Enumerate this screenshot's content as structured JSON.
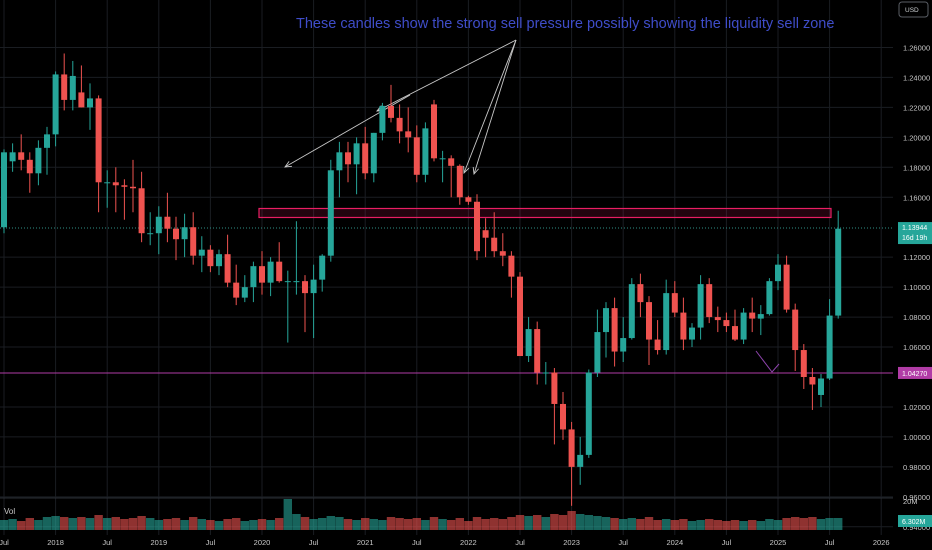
{
  "chart_data": {
    "type": "candlestick",
    "annotation": "These candles show the strong sell pressure possibly showing the liquidity sell zone",
    "currency_button": "USD",
    "yaxis": {
      "ticks": [
        1.26,
        1.24,
        1.22,
        1.2,
        1.18,
        1.16,
        1.12,
        1.1,
        1.08,
        1.06,
        1.02,
        1.0,
        0.98,
        0.96,
        0.94
      ],
      "tick_labels": [
        "1.26000",
        "1.24000",
        "1.22000",
        "1.20000",
        "1.18000",
        "1.16000",
        "1.12000",
        "1.10000",
        "1.08000",
        "1.06000",
        "1.02000",
        "1.00000",
        "0.98000",
        "0.96000",
        "0.94000"
      ],
      "range": [
        0.9245,
        1.2917
      ]
    },
    "price_tag": {
      "value": 1.13944,
      "label": "1.13944",
      "sublabel": "16d 19h"
    },
    "line_tag": {
      "value": 1.0427,
      "label": "1.04270"
    },
    "sell_zone": {
      "top": 1.1525,
      "bottom": 1.1465
    },
    "volume": {
      "label": "Vol",
      "scale_label": "20M",
      "value_label": "6.302M"
    },
    "xaxis": {
      "ticks": [
        {
          "i": 0,
          "label": "Jul"
        },
        {
          "i": 6,
          "label": "2018"
        },
        {
          "i": 12,
          "label": "Jul"
        },
        {
          "i": 18,
          "label": "2019"
        },
        {
          "i": 24,
          "label": "Jul"
        },
        {
          "i": 30,
          "label": "2020"
        },
        {
          "i": 36,
          "label": "Jul"
        },
        {
          "i": 42,
          "label": "2021"
        },
        {
          "i": 48,
          "label": "Jul"
        },
        {
          "i": 54,
          "label": "2022"
        },
        {
          "i": 60,
          "label": "Jul"
        },
        {
          "i": 66,
          "label": "2023"
        },
        {
          "i": 72,
          "label": "Jul"
        },
        {
          "i": 78,
          "label": "2024"
        },
        {
          "i": 84,
          "label": "Jul"
        },
        {
          "i": 90,
          "label": "2025"
        },
        {
          "i": 96,
          "label": "Jul"
        },
        {
          "i": 102,
          "label": "2026"
        }
      ]
    },
    "candles": [
      {
        "o": 1.14,
        "h": 1.192,
        "l": 1.136,
        "c": 1.19,
        "v": 1.0
      },
      {
        "o": 1.184,
        "h": 1.196,
        "l": 1.177,
        "c": 1.19,
        "v": 1.1
      },
      {
        "o": 1.19,
        "h": 1.202,
        "l": 1.178,
        "c": 1.185,
        "v": 0.9
      },
      {
        "o": 1.185,
        "h": 1.19,
        "l": 1.163,
        "c": 1.176,
        "v": 1.2
      },
      {
        "o": 1.176,
        "h": 1.198,
        "l": 1.168,
        "c": 1.193,
        "v": 1.0
      },
      {
        "o": 1.193,
        "h": 1.207,
        "l": 1.175,
        "c": 1.202,
        "v": 1.3
      },
      {
        "o": 1.202,
        "h": 1.244,
        "l": 1.194,
        "c": 1.242,
        "v": 1.4
      },
      {
        "o": 1.242,
        "h": 1.256,
        "l": 1.218,
        "c": 1.225,
        "v": 1.3
      },
      {
        "o": 1.225,
        "h": 1.251,
        "l": 1.218,
        "c": 1.241,
        "v": 1.2
      },
      {
        "o": 1.23,
        "h": 1.248,
        "l": 1.22,
        "c": 1.22,
        "v": 1.3
      },
      {
        "o": 1.22,
        "h": 1.236,
        "l": 1.205,
        "c": 1.226,
        "v": 1.2
      },
      {
        "o": 1.226,
        "h": 1.228,
        "l": 1.15,
        "c": 1.17,
        "v": 1.5
      },
      {
        "o": 1.17,
        "h": 1.178,
        "l": 1.153,
        "c": 1.17,
        "v": 1.2
      },
      {
        "o": 1.17,
        "h": 1.18,
        "l": 1.15,
        "c": 1.168,
        "v": 1.3
      },
      {
        "o": 1.168,
        "h": 1.172,
        "l": 1.145,
        "c": 1.167,
        "v": 1.1
      },
      {
        "o": 1.167,
        "h": 1.185,
        "l": 1.15,
        "c": 1.166,
        "v": 1.2
      },
      {
        "o": 1.166,
        "h": 1.177,
        "l": 1.13,
        "c": 1.136,
        "v": 1.4
      },
      {
        "o": 1.136,
        "h": 1.15,
        "l": 1.128,
        "c": 1.136,
        "v": 1.2
      },
      {
        "o": 1.136,
        "h": 1.154,
        "l": 1.122,
        "c": 1.147,
        "v": 1.0
      },
      {
        "o": 1.147,
        "h": 1.163,
        "l": 1.13,
        "c": 1.139,
        "v": 1.1
      },
      {
        "o": 1.139,
        "h": 1.147,
        "l": 1.118,
        "c": 1.132,
        "v": 1.2
      },
      {
        "o": 1.132,
        "h": 1.149,
        "l": 1.12,
        "c": 1.14,
        "v": 1.0
      },
      {
        "o": 1.14,
        "h": 1.15,
        "l": 1.115,
        "c": 1.121,
        "v": 1.3
      },
      {
        "o": 1.121,
        "h": 1.134,
        "l": 1.11,
        "c": 1.125,
        "v": 1.1
      },
      {
        "o": 1.125,
        "h": 1.128,
        "l": 1.11,
        "c": 1.114,
        "v": 1.0
      },
      {
        "o": 1.114,
        "h": 1.125,
        "l": 1.108,
        "c": 1.122,
        "v": 0.9
      },
      {
        "o": 1.122,
        "h": 1.135,
        "l": 1.1,
        "c": 1.103,
        "v": 1.1
      },
      {
        "o": 1.103,
        "h": 1.115,
        "l": 1.088,
        "c": 1.093,
        "v": 1.2
      },
      {
        "o": 1.093,
        "h": 1.108,
        "l": 1.09,
        "c": 1.1,
        "v": 0.9
      },
      {
        "o": 1.1,
        "h": 1.117,
        "l": 1.09,
        "c": 1.114,
        "v": 1.0
      },
      {
        "o": 1.114,
        "h": 1.124,
        "l": 1.095,
        "c": 1.103,
        "v": 1.1
      },
      {
        "o": 1.103,
        "h": 1.12,
        "l": 1.094,
        "c": 1.117,
        "v": 1.0
      },
      {
        "o": 1.117,
        "h": 1.13,
        "l": 1.103,
        "c": 1.104,
        "v": 1.2
      },
      {
        "o": 1.104,
        "h": 1.111,
        "l": 1.063,
        "c": 1.104,
        "v": 3.1
      },
      {
        "o": 1.104,
        "h": 1.144,
        "l": 1.095,
        "c": 1.104,
        "v": 1.6
      },
      {
        "o": 1.104,
        "h": 1.108,
        "l": 1.07,
        "c": 1.096,
        "v": 1.3
      },
      {
        "o": 1.096,
        "h": 1.115,
        "l": 1.066,
        "c": 1.105,
        "v": 1.1
      },
      {
        "o": 1.105,
        "h": 1.122,
        "l": 1.097,
        "c": 1.121,
        "v": 1.2
      },
      {
        "o": 1.121,
        "h": 1.185,
        "l": 1.117,
        "c": 1.178,
        "v": 1.4
      },
      {
        "o": 1.178,
        "h": 1.197,
        "l": 1.16,
        "c": 1.19,
        "v": 1.3
      },
      {
        "o": 1.19,
        "h": 1.197,
        "l": 1.17,
        "c": 1.182,
        "v": 1.1
      },
      {
        "o": 1.182,
        "h": 1.2,
        "l": 1.162,
        "c": 1.196,
        "v": 1.0
      },
      {
        "o": 1.196,
        "h": 1.207,
        "l": 1.172,
        "c": 1.176,
        "v": 1.2
      },
      {
        "o": 1.176,
        "h": 1.203,
        "l": 1.17,
        "c": 1.203,
        "v": 1.1
      },
      {
        "o": 1.203,
        "h": 1.223,
        "l": 1.198,
        "c": 1.221,
        "v": 1.0
      },
      {
        "o": 1.221,
        "h": 1.235,
        "l": 1.21,
        "c": 1.213,
        "v": 1.3
      },
      {
        "o": 1.213,
        "h": 1.222,
        "l": 1.196,
        "c": 1.204,
        "v": 1.2
      },
      {
        "o": 1.204,
        "h": 1.22,
        "l": 1.19,
        "c": 1.2,
        "v": 1.1
      },
      {
        "o": 1.2,
        "h": 1.208,
        "l": 1.17,
        "c": 1.175,
        "v": 1.2
      },
      {
        "o": 1.175,
        "h": 1.21,
        "l": 1.17,
        "c": 1.206,
        "v": 1.0
      },
      {
        "o": 1.222,
        "h": 1.225,
        "l": 1.184,
        "c": 1.186,
        "v": 1.3
      },
      {
        "o": 1.186,
        "h": 1.191,
        "l": 1.17,
        "c": 1.186,
        "v": 1.1
      },
      {
        "o": 1.186,
        "h": 1.188,
        "l": 1.16,
        "c": 1.181,
        "v": 1.0
      },
      {
        "o": 1.181,
        "h": 1.182,
        "l": 1.155,
        "c": 1.16,
        "v": 1.2
      },
      {
        "o": 1.16,
        "h": 1.161,
        "l": 1.155,
        "c": 1.157,
        "v": 0.9
      },
      {
        "o": 1.157,
        "h": 1.162,
        "l": 1.118,
        "c": 1.124,
        "v": 1.3
      },
      {
        "o": 1.138,
        "h": 1.146,
        "l": 1.12,
        "c": 1.133,
        "v": 1.1
      },
      {
        "o": 1.133,
        "h": 1.15,
        "l": 1.12,
        "c": 1.124,
        "v": 1.2
      },
      {
        "o": 1.124,
        "h": 1.136,
        "l": 1.114,
        "c": 1.121,
        "v": 1.1
      },
      {
        "o": 1.121,
        "h": 1.124,
        "l": 1.093,
        "c": 1.107,
        "v": 1.3
      },
      {
        "o": 1.107,
        "h": 1.11,
        "l": 1.054,
        "c": 1.054,
        "v": 1.5
      },
      {
        "o": 1.054,
        "h": 1.08,
        "l": 1.05,
        "c": 1.072,
        "v": 1.4
      },
      {
        "o": 1.072,
        "h": 1.077,
        "l": 1.035,
        "c": 1.043,
        "v": 1.5
      },
      {
        "o": 1.043,
        "h": 1.05,
        "l": 1.035,
        "c": 1.043,
        "v": 1.3
      },
      {
        "o": 1.043,
        "h": 1.046,
        "l": 0.995,
        "c": 1.022,
        "v": 1.6
      },
      {
        "o": 1.022,
        "h": 1.03,
        "l": 0.998,
        "c": 1.005,
        "v": 1.5
      },
      {
        "o": 1.005,
        "h": 1.01,
        "l": 0.954,
        "c": 0.98,
        "v": 1.9
      },
      {
        "o": 0.98,
        "h": 1.0,
        "l": 0.968,
        "c": 0.988,
        "v": 1.6
      },
      {
        "o": 0.988,
        "h": 1.045,
        "l": 0.986,
        "c": 1.043,
        "v": 1.5
      },
      {
        "o": 1.043,
        "h": 1.085,
        "l": 1.04,
        "c": 1.07,
        "v": 1.4
      },
      {
        "o": 1.07,
        "h": 1.09,
        "l": 1.053,
        "c": 1.086,
        "v": 1.3
      },
      {
        "o": 1.086,
        "h": 1.093,
        "l": 1.047,
        "c": 1.057,
        "v": 1.2
      },
      {
        "o": 1.057,
        "h": 1.08,
        "l": 1.05,
        "c": 1.066,
        "v": 1.1
      },
      {
        "o": 1.066,
        "h": 1.106,
        "l": 1.065,
        "c": 1.102,
        "v": 1.2
      },
      {
        "o": 1.102,
        "h": 1.109,
        "l": 1.08,
        "c": 1.09,
        "v": 1.1
      },
      {
        "o": 1.09,
        "h": 1.094,
        "l": 1.048,
        "c": 1.065,
        "v": 1.3
      },
      {
        "o": 1.065,
        "h": 1.078,
        "l": 1.055,
        "c": 1.058,
        "v": 1.0
      },
      {
        "o": 1.058,
        "h": 1.105,
        "l": 1.055,
        "c": 1.096,
        "v": 1.1
      },
      {
        "o": 1.096,
        "h": 1.104,
        "l": 1.08,
        "c": 1.083,
        "v": 1.0
      },
      {
        "o": 1.083,
        "h": 1.093,
        "l": 1.058,
        "c": 1.065,
        "v": 1.1
      },
      {
        "o": 1.065,
        "h": 1.076,
        "l": 1.06,
        "c": 1.073,
        "v": 0.9
      },
      {
        "o": 1.073,
        "h": 1.108,
        "l": 1.065,
        "c": 1.102,
        "v": 1.0
      },
      {
        "o": 1.102,
        "h": 1.106,
        "l": 1.076,
        "c": 1.08,
        "v": 1.1
      },
      {
        "o": 1.08,
        "h": 1.087,
        "l": 1.07,
        "c": 1.078,
        "v": 1.0
      },
      {
        "o": 1.078,
        "h": 1.083,
        "l": 1.07,
        "c": 1.074,
        "v": 0.9
      },
      {
        "o": 1.074,
        "h": 1.085,
        "l": 1.064,
        "c": 1.065,
        "v": 1.0
      },
      {
        "o": 1.065,
        "h": 1.086,
        "l": 1.062,
        "c": 1.083,
        "v": 0.9
      },
      {
        "o": 1.083,
        "h": 1.093,
        "l": 1.07,
        "c": 1.079,
        "v": 1.0
      },
      {
        "o": 1.079,
        "h": 1.088,
        "l": 1.068,
        "c": 1.082,
        "v": 0.9
      },
      {
        "o": 1.082,
        "h": 1.106,
        "l": 1.081,
        "c": 1.104,
        "v": 1.1
      },
      {
        "o": 1.104,
        "h": 1.122,
        "l": 1.098,
        "c": 1.115,
        "v": 1.0
      },
      {
        "o": 1.115,
        "h": 1.121,
        "l": 1.083,
        "c": 1.085,
        "v": 1.2
      },
      {
        "o": 1.085,
        "h": 1.089,
        "l": 1.044,
        "c": 1.058,
        "v": 1.3
      },
      {
        "o": 1.058,
        "h": 1.062,
        "l": 1.032,
        "c": 1.04,
        "v": 1.2
      },
      {
        "o": 1.04,
        "h": 1.046,
        "l": 1.018,
        "c": 1.035,
        "v": 1.3
      },
      {
        "o": 1.028,
        "h": 1.042,
        "l": 1.02,
        "c": 1.039,
        "v": 1.1
      },
      {
        "o": 1.039,
        "h": 1.092,
        "l": 1.038,
        "c": 1.081,
        "v": 1.2
      },
      {
        "o": 1.081,
        "h": 1.151,
        "l": 1.079,
        "c": 1.139,
        "v": 1.2
      }
    ]
  }
}
